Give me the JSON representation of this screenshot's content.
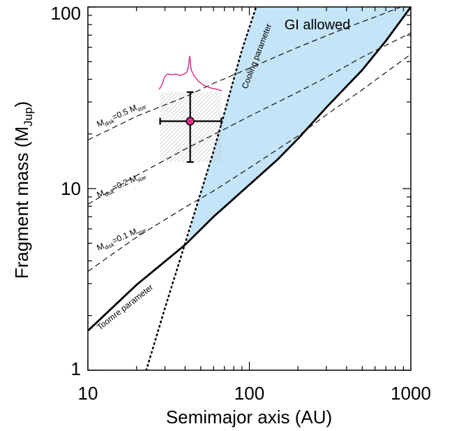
{
  "chart_data": {
    "type": "line",
    "xlabel": "Semimajor axis (AU)",
    "ylabel": "Fragment mass (M",
    "ylabel_sub": "Jup",
    "ylabel_close": ")",
    "x_scale": "log",
    "y_scale": "log",
    "xlim": [
      10,
      1000
    ],
    "ylim": [
      1,
      100
    ],
    "x_ticks": [
      10,
      100,
      1000
    ],
    "x_tick_labels": [
      "10",
      "100",
      "1000"
    ],
    "y_ticks": [
      1,
      10,
      100
    ],
    "y_tick_labels": [
      "1",
      "10",
      "100"
    ],
    "grid": false,
    "series": [
      {
        "style": "solid-thick",
        "x": [
          10,
          20,
          40,
          60,
          100,
          150,
          200,
          300,
          500,
          700,
          1000
        ],
        "y": [
          1.65,
          2.95,
          4.9,
          7.0,
          10.5,
          14.5,
          18.8,
          28,
          45,
          65,
          100
        ]
      },
      {
        "style": "dotted",
        "x": [
          23,
          30,
          40,
          50,
          60,
          70,
          80,
          90,
          110
        ],
        "y": [
          1,
          2.2,
          5,
          9.5,
          16,
          26,
          40,
          58,
          100
        ]
      },
      {
        "style": "dashed",
        "x": [
          10,
          20,
          40,
          60,
          100,
          200,
          300,
          500,
          1000
        ],
        "y": [
          3.5,
          5.4,
          7.9,
          9.7,
          13,
          19.5,
          25.5,
          35,
          55
        ]
      },
      {
        "style": "dashed",
        "x": [
          10,
          20,
          40,
          60,
          100,
          200,
          300,
          500,
          1000
        ],
        "y": [
          8.2,
          11.8,
          16.5,
          19.8,
          25,
          34,
          41,
          53,
          72
        ]
      },
      {
        "style": "dashed",
        "x": [
          10,
          20,
          40,
          60,
          100,
          200,
          400,
          600,
          1000
        ],
        "y": [
          18.5,
          25,
          32,
          38,
          46,
          60,
          77,
          88,
          105
        ]
      }
    ],
    "gi_region_label": "GI allowed",
    "toomre_label": "Toomre parameter",
    "cooling_label": "Cooling parameter",
    "disk_labels": [
      {
        "main": "M",
        "sub1": "disk",
        "mid": "=0.5 M",
        "sub2": "star"
      },
      {
        "main": "M",
        "sub1": "disk",
        "mid": "=0.2 M",
        "sub2": "star"
      },
      {
        "main": "M",
        "sub1": "disk",
        "mid": "=0.1 M",
        "sub2": "star"
      }
    ],
    "measurement": {
      "x": 43,
      "y": 23.5,
      "x_err": [
        28,
        67
      ],
      "y_err": [
        14,
        34
      ],
      "shaded_box": {
        "x": [
          28,
          67
        ],
        "y": [
          14,
          34
        ]
      }
    },
    "colors": {
      "gi_fill": "#c4e4f8",
      "gi_text": "#1f2a6b",
      "point": "#e0308a",
      "profile": "#e0308a",
      "hatch": "#b9b9b9"
    }
  }
}
